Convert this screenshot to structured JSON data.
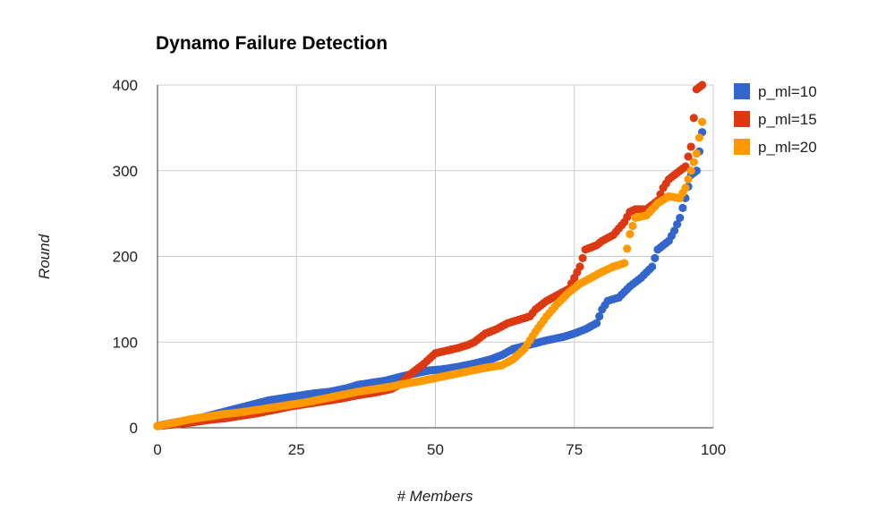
{
  "chart_data": {
    "type": "scatter",
    "title": "Dynamo Failure Detection",
    "xlabel": "# Members",
    "ylabel": "Round",
    "xlim": [
      0,
      100
    ],
    "ylim": [
      0,
      400
    ],
    "x_ticks": [
      "0",
      "25",
      "50",
      "75",
      "100"
    ],
    "y_ticks": [
      "0",
      "100",
      "200",
      "300",
      "400"
    ],
    "grid": true,
    "legend_position": "right",
    "series": [
      {
        "name": "p_ml=10",
        "color": "#3366cc",
        "points": [
          [
            0,
            2
          ],
          [
            2,
            5
          ],
          [
            5,
            8
          ],
          [
            8,
            12
          ],
          [
            11,
            17
          ],
          [
            14,
            22
          ],
          [
            17,
            27
          ],
          [
            20,
            32
          ],
          [
            22,
            34
          ],
          [
            24,
            36
          ],
          [
            26,
            38
          ],
          [
            28,
            40
          ],
          [
            31,
            42
          ],
          [
            34,
            46
          ],
          [
            36,
            50
          ],
          [
            38,
            52
          ],
          [
            41,
            55
          ],
          [
            44,
            60
          ],
          [
            46,
            63
          ],
          [
            49,
            67
          ],
          [
            51,
            68
          ],
          [
            54,
            71
          ],
          [
            57,
            75
          ],
          [
            60,
            80
          ],
          [
            62,
            85
          ],
          [
            64,
            92
          ],
          [
            67,
            97
          ],
          [
            70,
            102
          ],
          [
            73,
            106
          ],
          [
            75,
            110
          ],
          [
            77,
            115
          ],
          [
            79,
            122
          ],
          [
            80,
            138
          ],
          [
            81,
            148
          ],
          [
            83,
            152
          ],
          [
            85,
            165
          ],
          [
            87,
            175
          ],
          [
            89,
            188
          ],
          [
            90,
            208
          ],
          [
            92,
            218
          ],
          [
            93,
            230
          ],
          [
            94,
            245
          ],
          [
            95,
            268
          ],
          [
            96,
            295
          ],
          [
            97,
            300
          ],
          [
            98,
            345
          ]
        ]
      },
      {
        "name": "p_ml=15",
        "color": "#dc3912",
        "points": [
          [
            0,
            2
          ],
          [
            3,
            4
          ],
          [
            6,
            6
          ],
          [
            9,
            9
          ],
          [
            12,
            11
          ],
          [
            15,
            14
          ],
          [
            18,
            17
          ],
          [
            21,
            21
          ],
          [
            24,
            25
          ],
          [
            27,
            28
          ],
          [
            30,
            31
          ],
          [
            33,
            34
          ],
          [
            36,
            38
          ],
          [
            39,
            41
          ],
          [
            42,
            45
          ],
          [
            44,
            52
          ],
          [
            45,
            60
          ],
          [
            46,
            65
          ],
          [
            48,
            75
          ],
          [
            50,
            87
          ],
          [
            52,
            90
          ],
          [
            54,
            93
          ],
          [
            56,
            97
          ],
          [
            57,
            100
          ],
          [
            58,
            105
          ],
          [
            59,
            110
          ],
          [
            61,
            115
          ],
          [
            63,
            122
          ],
          [
            65,
            126
          ],
          [
            67,
            130
          ],
          [
            68,
            138
          ],
          [
            70,
            148
          ],
          [
            72,
            155
          ],
          [
            74,
            162
          ],
          [
            75,
            175
          ],
          [
            76,
            188
          ],
          [
            77,
            208
          ],
          [
            79,
            213
          ],
          [
            80,
            218
          ],
          [
            82,
            225
          ],
          [
            84,
            240
          ],
          [
            85,
            252
          ],
          [
            86,
            255
          ],
          [
            88,
            255
          ],
          [
            90,
            265
          ],
          [
            91,
            280
          ],
          [
            92,
            290
          ],
          [
            94,
            300
          ],
          [
            95,
            305
          ],
          [
            96,
            328
          ],
          [
            97,
            395
          ],
          [
            98,
            400
          ]
        ]
      },
      {
        "name": "p_ml=20",
        "color": "#ff9900",
        "points": [
          [
            0,
            2
          ],
          [
            3,
            6
          ],
          [
            6,
            10
          ],
          [
            9,
            13
          ],
          [
            12,
            16
          ],
          [
            15,
            18
          ],
          [
            18,
            21
          ],
          [
            21,
            24
          ],
          [
            24,
            27
          ],
          [
            27,
            30
          ],
          [
            30,
            34
          ],
          [
            33,
            38
          ],
          [
            36,
            42
          ],
          [
            39,
            45
          ],
          [
            42,
            48
          ],
          [
            45,
            52
          ],
          [
            47,
            54
          ],
          [
            50,
            58
          ],
          [
            53,
            62
          ],
          [
            56,
            66
          ],
          [
            59,
            70
          ],
          [
            62,
            73
          ],
          [
            64,
            80
          ],
          [
            66,
            92
          ],
          [
            68,
            112
          ],
          [
            70,
            130
          ],
          [
            72,
            145
          ],
          [
            74,
            158
          ],
          [
            76,
            168
          ],
          [
            78,
            175
          ],
          [
            80,
            182
          ],
          [
            82,
            188
          ],
          [
            84,
            192
          ],
          [
            85,
            226
          ],
          [
            86,
            245
          ],
          [
            88,
            248
          ],
          [
            90,
            262
          ],
          [
            92,
            270
          ],
          [
            94,
            268
          ],
          [
            95,
            280
          ],
          [
            96,
            300
          ],
          [
            97,
            320
          ],
          [
            98,
            357
          ]
        ]
      }
    ]
  }
}
